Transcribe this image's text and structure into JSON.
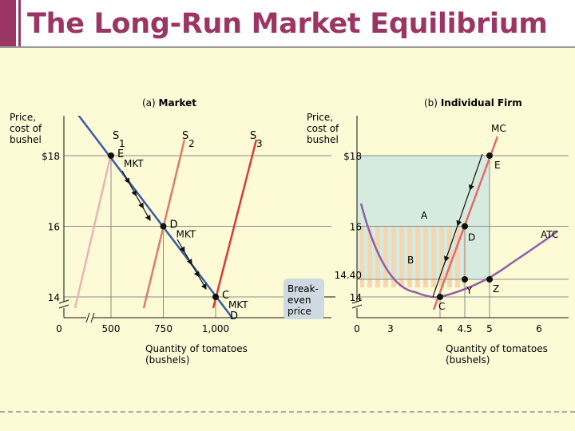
{
  "title": "The Long-Run Market Equilibrium",
  "colors": {
    "title": "#9b3564",
    "background": "#fdfbd6",
    "demand": "#3a5ca8",
    "s1": "#e8b4b4",
    "s2": "#e07a6a",
    "s3": "#d83a36",
    "mc": "#e46a6a",
    "atc": "#8f5fa8",
    "profit_area": "#d6ebe0",
    "loss_stripes": "#f6d6b0",
    "breakeven_box": "#cfd9e2"
  },
  "panel_a": {
    "heading_prefix": "(a)",
    "heading": "Market",
    "ylabel_lines": [
      "Price,",
      "cost of",
      "bushel"
    ],
    "xlabel_lines": [
      "Quantity of tomatoes",
      "(bushels)"
    ],
    "yticks": [
      {
        "value": 18,
        "label": "$18"
      },
      {
        "value": 16,
        "label": "16"
      },
      {
        "value": 14,
        "label": "14"
      }
    ],
    "xticks": [
      {
        "value": 0,
        "label": "0"
      },
      {
        "value": 500,
        "label": "500"
      },
      {
        "value": 750,
        "label": "750"
      },
      {
        "value": 1000,
        "label": "1,000"
      }
    ],
    "supply_curves": [
      {
        "label": "S",
        "sub": "1"
      },
      {
        "label": "S",
        "sub": "2"
      },
      {
        "label": "S",
        "sub": "3"
      }
    ],
    "demand_label": "D",
    "points": [
      {
        "label": "E",
        "sub": "MKT",
        "quantity": 500,
        "price": 18
      },
      {
        "label": "D",
        "sub": "MKT",
        "quantity": 750,
        "price": 16
      },
      {
        "label": "C",
        "sub": "MKT",
        "quantity": 1000,
        "price": 14
      }
    ]
  },
  "panel_b": {
    "heading_prefix": "(b)",
    "heading": "Individual Firm",
    "ylabel_lines": [
      "Price,",
      "cost of",
      "bushel"
    ],
    "xlabel_lines": [
      "Quantity of tomatoes",
      "(bushels)"
    ],
    "yticks": [
      {
        "value": 18,
        "label": "$18"
      },
      {
        "value": 16,
        "label": "16"
      },
      {
        "value": 14.4,
        "label": "14.40"
      },
      {
        "value": 14,
        "label": "14"
      }
    ],
    "xticks": [
      {
        "value": 0,
        "label": "0"
      },
      {
        "value": 3,
        "label": "3"
      },
      {
        "value": 4,
        "label": "4"
      },
      {
        "value": 4.5,
        "label": "4.5"
      },
      {
        "value": 5,
        "label": "5"
      },
      {
        "value": 6,
        "label": "6"
      }
    ],
    "mc_label": "MC",
    "atc_label": "ATC",
    "area_labels": [
      "A",
      "B"
    ],
    "points": [
      {
        "label": "E",
        "quantity": 5,
        "price": 18
      },
      {
        "label": "D",
        "quantity": 4.5,
        "price": 16
      },
      {
        "label": "C",
        "quantity": 4,
        "price": 14
      },
      {
        "label": "Y",
        "quantity": 4.5,
        "price": 14.4
      },
      {
        "label": "Z",
        "quantity": 5,
        "price": 14.4
      }
    ],
    "breakeven_lines": [
      "Break-",
      "even",
      "price"
    ]
  }
}
